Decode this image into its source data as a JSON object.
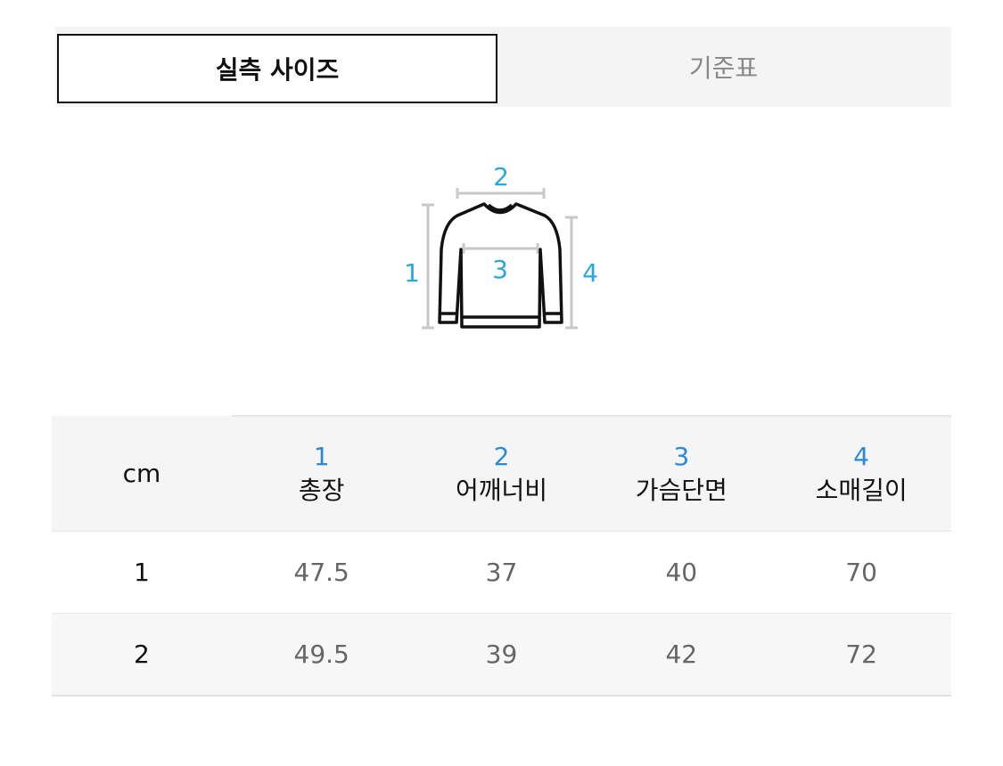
{
  "tabs": [
    {
      "label": "실측 사이즈",
      "active": true
    },
    {
      "label": "기준표",
      "active": false
    }
  ],
  "diagram": {
    "labels": [
      "1",
      "2",
      "3",
      "4"
    ],
    "accent": "#29a8e0"
  },
  "table": {
    "unit": "cm",
    "columns": [
      {
        "num": "1",
        "label": "총장"
      },
      {
        "num": "2",
        "label": "어깨너비"
      },
      {
        "num": "3",
        "label": "가슴단면"
      },
      {
        "num": "4",
        "label": "소매길이"
      }
    ],
    "rows": [
      {
        "size": "1",
        "values": [
          "47.5",
          "37",
          "40",
          "70"
        ]
      },
      {
        "size": "2",
        "values": [
          "49.5",
          "39",
          "42",
          "72"
        ]
      }
    ]
  }
}
